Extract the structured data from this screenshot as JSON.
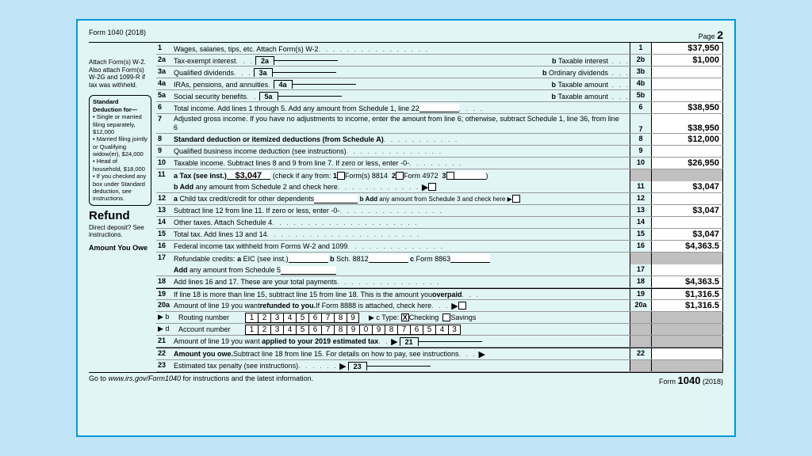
{
  "header": {
    "form": "Form 1040 (2018)",
    "page_label": "Page",
    "page_num": "2"
  },
  "margin": {
    "attach": "Attach Form(s) W-2. Also attach Form(s) W-2G and 1099-R if tax was withheld.",
    "std_title": "Standard Deduction for—",
    "std_items": [
      "Single or married filing separately, $12,000",
      "Married filing jointly or Qualifying widow(er), $24,000",
      "Head of household, $18,000",
      "If you checked any box under Standard deduction, see instructions."
    ],
    "refund": "Refund",
    "dd": "Direct deposit? See instructions.",
    "owe": "Amount  You  Owe"
  },
  "lines": {
    "l1": {
      "n": "1",
      "t": "Wages, salaries, tips, etc. Attach Form(s) W-2",
      "rn": "1",
      "amt": "$37,950"
    },
    "l2a": {
      "n": "2a",
      "t": "Tax-exempt interest",
      "mini": "2a",
      "bt": "Taxable interest",
      "rn": "2b",
      "amt": "$1,000"
    },
    "l3a": {
      "n": "3a",
      "t": "Qualified dividends",
      "mini": "3a",
      "bt": "Ordinary dividends",
      "rn": "3b",
      "amt": ""
    },
    "l4a": {
      "n": "4a",
      "t": "IRAs, pensions, and annuities",
      "mini": "4a",
      "bt": "Taxable amount",
      "rn": "4b",
      "amt": ""
    },
    "l5a": {
      "n": "5a",
      "t": "Social security benefits",
      "mini": "5a",
      "bt": "Taxable amount",
      "rn": "5b",
      "amt": ""
    },
    "l6": {
      "n": "6",
      "t": "Total income. Add lines 1 through 5. Add any amount from Schedule 1, line 22",
      "rn": "6",
      "amt": "$38,950"
    },
    "l7": {
      "n": "7",
      "t": "Adjusted gross income. If you have no adjustments to income, enter the amount from line 6; otherwise, subtract Schedule 1, line 36, from line 6",
      "rn": "7",
      "amt": "$38,950"
    },
    "l8": {
      "n": "8",
      "t": "Standard deduction or itemized deductions (from Schedule A)",
      "rn": "8",
      "amt": "$12,000"
    },
    "l9": {
      "n": "9",
      "t": "Qualified business income deduction (see instructions)",
      "rn": "9",
      "amt": ""
    },
    "l10": {
      "n": "10",
      "t": "Taxable income. Subtract lines 8 and 9 from line 7. If zero or less, enter -0-",
      "rn": "10",
      "amt": "$26,950"
    },
    "l11": {
      "n": "11",
      "ta": "a Tax (see inst.)",
      "tamt": "$3,047",
      "chk": "(check if any from:",
      "c1": "Form(s) 8814",
      "c2": "Form 4972",
      "c3": "3",
      "tb": "b Add any amount from Schedule 2 and check here",
      "rn": "11",
      "amt": "$3,047"
    },
    "l12": {
      "n": "12",
      "t": "a Child tax credit/credit for other dependents",
      "t2": "b Add any amount from Schedule 3 and check here ▶",
      "rn": "12",
      "amt": ""
    },
    "l13": {
      "n": "13",
      "t": "Subtract line 12 from line 11. If zero or less, enter -0-",
      "rn": "13",
      "amt": "$3,047"
    },
    "l14": {
      "n": "14",
      "t": "Other taxes. Attach Schedule 4",
      "rn": "14",
      "amt": ""
    },
    "l15": {
      "n": "15",
      "t": "Total tax. Add lines 13 and 14",
      "rn": "15",
      "amt": "$3,047"
    },
    "l16": {
      "n": "16",
      "t": "Federal income tax withheld from Forms W-2 and 1099",
      "rn": "16",
      "amt": "$4,363.5"
    },
    "l17": {
      "n": "17",
      "t1": "Refundable credits:",
      "a": "a EIC (see inst.)",
      "b": "b Sch. 8812",
      "c": "c Form 8863",
      "add": "Add any amount from Schedule 5",
      "rn": "17",
      "amt": ""
    },
    "l18": {
      "n": "18",
      "t": "Add lines 16 and 17. These are your total payments",
      "rn": "18",
      "amt": "$4,363.5"
    },
    "l19": {
      "n": "19",
      "t": "If line 18 is more than line 15, subtract line 15 from line 18. This is the amount you ",
      "b": "overpaid",
      "rn": "19",
      "amt": "$1,316.5"
    },
    "l20a": {
      "n": "20a",
      "t": "Amount of line 19 you want ",
      "b": "refunded to you.",
      "t2": " If Form 8888 is attached, check here",
      "rn": "20a",
      "amt": "$1,316.5"
    },
    "l20b": {
      "n": "▶ b",
      "t": "Routing number",
      "digits": [
        "1",
        "2",
        "3",
        "4",
        "5",
        "6",
        "7",
        "8",
        "9"
      ],
      "ctype": "▶ c Type:",
      "ck": "Checking",
      "sv": "Savings"
    },
    "l20d": {
      "n": "▶ d",
      "t": "Account number",
      "digits": [
        "1",
        "2",
        "3",
        "4",
        "5",
        "6",
        "7",
        "8",
        "9",
        "0",
        "9",
        "8",
        "7",
        "6",
        "5",
        "4",
        "3"
      ]
    },
    "l21": {
      "n": "21",
      "t": "Amount of line 19 you want applied to your 2019 estimated tax",
      "mini": "21"
    },
    "l22": {
      "n": "22",
      "t": "Amount you owe.",
      "t2": " Subtract line 18 from line 15. For details on how to pay, see instructions",
      "rn": "22",
      "amt": ""
    },
    "l23": {
      "n": "23",
      "t": "Estimated tax penalty (see instructions)",
      "mini": "23"
    }
  },
  "footer": {
    "left1": "Go to ",
    "left2": "www.irs.gov/Form1040",
    "left3": " for instructions and the latest information.",
    "right1": "Form ",
    "right2": "1040",
    "right3": " (2018)"
  }
}
